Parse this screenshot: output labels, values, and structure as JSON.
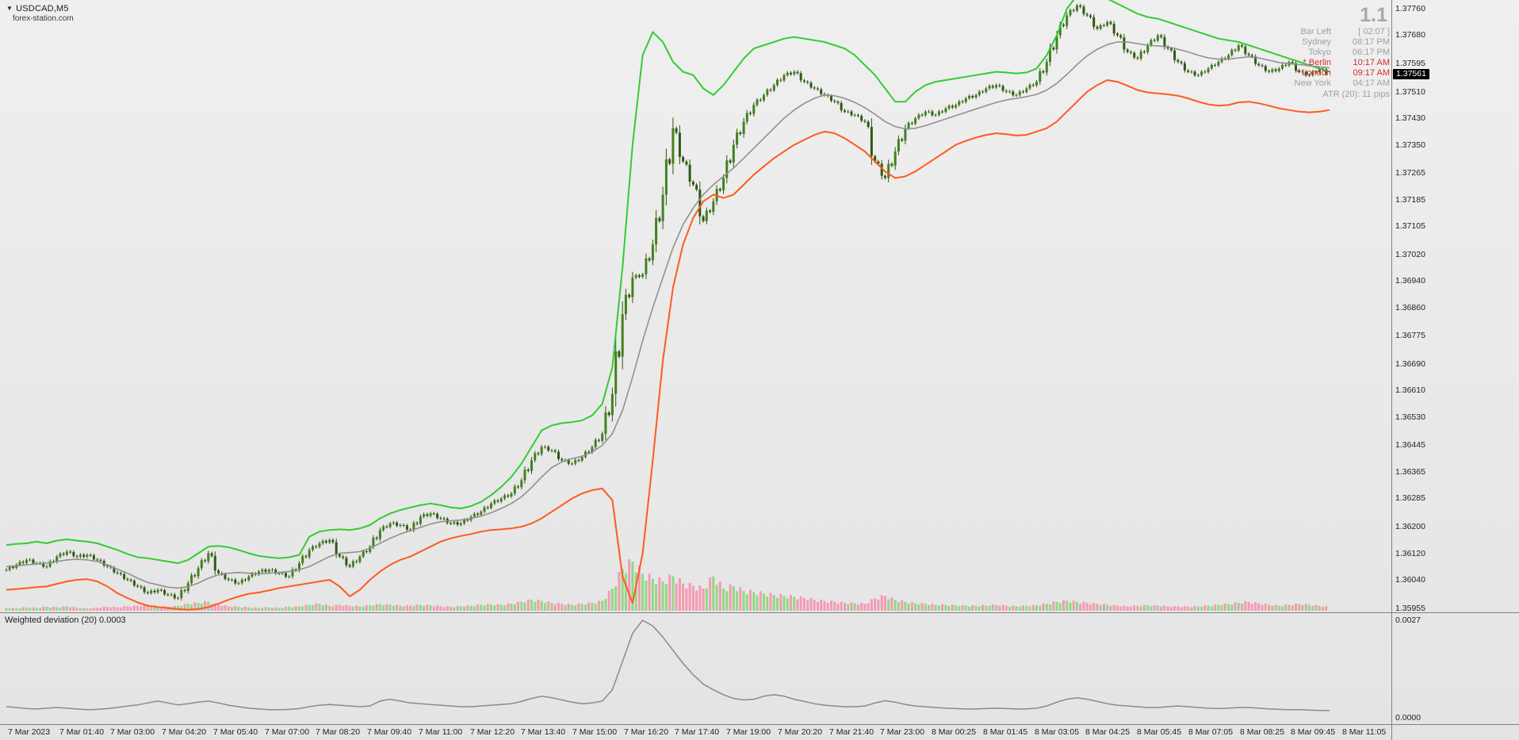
{
  "header": {
    "symbol": "USDCAD,M5",
    "watermark": "forex-station.com",
    "dropdown_icon": "▼"
  },
  "info_panel": {
    "big_number": "1.1",
    "rows": [
      {
        "label": "Bar Left",
        "value": "[ 02:07 ]",
        "highlight": false
      },
      {
        "label": "Sydney",
        "value": "08:17 PM",
        "highlight": false
      },
      {
        "label": "Tokyo",
        "value": "06:17 PM",
        "highlight": false
      },
      {
        "label": "* Berlin",
        "value": "10:17 AM",
        "highlight": true
      },
      {
        "label": "* London",
        "value": "09:17 AM",
        "highlight": true
      },
      {
        "label": "New York",
        "value": "04:17 AM",
        "highlight": false
      }
    ],
    "atr_line": "ATR (20): 11 pips"
  },
  "colors": {
    "candle_up": "#44801f",
    "candle_down": "#2d5a14",
    "candle_wick": "#2f5511",
    "volume_up": "#93d883",
    "volume_down": "#f49ab4",
    "separator": "#808080",
    "badge_bg": "#000000",
    "badge_text": "#ffffff",
    "session_red": "#d42a2a",
    "panel_gray": "#9f9f9f"
  },
  "chart_data": [
    {
      "type": "candlestick",
      "title": "USDCAD,M5",
      "ylabel": "",
      "xlabel": "",
      "ylim": [
        1.35942,
        1.37786
      ],
      "current_price": 1.37561,
      "y_ticks": [
        1.3776,
        1.3768,
        1.37595,
        1.3751,
        1.3743,
        1.3735,
        1.37265,
        1.37185,
        1.37105,
        1.3702,
        1.3694,
        1.3686,
        1.36775,
        1.3669,
        1.3661,
        1.3653,
        1.36445,
        1.36365,
        1.36285,
        1.362,
        1.3612,
        1.3604,
        1.35955
      ],
      "x_labels": [
        "7 Mar 2023",
        "7 Mar 01:40",
        "7 Mar 03:00",
        "7 Mar 04:20",
        "7 Mar 05:40",
        "7 Mar 07:00",
        "7 Mar 08:20",
        "7 Mar 09:40",
        "7 Mar 11:00",
        "7 Mar 12:20",
        "7 Mar 13:40",
        "7 Mar 15:00",
        "7 Mar 16:20",
        "7 Mar 17:40",
        "7 Mar 19:00",
        "7 Mar 20:20",
        "7 Mar 21:40",
        "7 Mar 23:00",
        "8 Mar 00:25",
        "8 Mar 01:45",
        "8 Mar 03:05",
        "8 Mar 04:25",
        "8 Mar 05:45",
        "8 Mar 07:05",
        "8 Mar 08:25",
        "8 Mar 09:45",
        "8 Mar 11:05"
      ],
      "close": [
        1.3607,
        1.36085,
        1.361,
        1.3609,
        1.3608,
        1.3611,
        1.36125,
        1.3611,
        1.36115,
        1.361,
        1.3608,
        1.3606,
        1.3604,
        1.3602,
        1.36,
        1.3601,
        1.35995,
        1.35985,
        1.3603,
        1.36075,
        1.3612,
        1.3606,
        1.3604,
        1.3603,
        1.3605,
        1.36065,
        1.3607,
        1.3606,
        1.3605,
        1.3609,
        1.3613,
        1.3615,
        1.3616,
        1.3611,
        1.3608,
        1.3611,
        1.3614,
        1.3619,
        1.3621,
        1.36205,
        1.3619,
        1.3623,
        1.3624,
        1.36225,
        1.3621,
        1.3621,
        1.3623,
        1.36245,
        1.3627,
        1.36285,
        1.363,
        1.3634,
        1.364,
        1.3644,
        1.3643,
        1.364,
        1.3639,
        1.3641,
        1.3644,
        1.3648,
        1.366,
        1.3684,
        1.3695,
        1.3696,
        1.3705,
        1.372,
        1.374,
        1.373,
        1.3723,
        1.3712,
        1.3718,
        1.3725,
        1.3735,
        1.3742,
        1.3747,
        1.375,
        1.3753,
        1.3756,
        1.3757,
        1.3754,
        1.3752,
        1.375,
        1.3748,
        1.3745,
        1.3744,
        1.3742,
        1.373,
        1.3725,
        1.3733,
        1.374,
        1.3743,
        1.3745,
        1.3744,
        1.3746,
        1.3747,
        1.3749,
        1.375,
        1.3752,
        1.3753,
        1.3751,
        1.375,
        1.3752,
        1.3754,
        1.376,
        1.3768,
        1.3774,
        1.3777,
        1.3774,
        1.377,
        1.3772,
        1.3768,
        1.3763,
        1.3761,
        1.3765,
        1.3768,
        1.3764,
        1.376,
        1.3757,
        1.3756,
        1.3758,
        1.376,
        1.3762,
        1.3765,
        1.3762,
        1.3759,
        1.3757,
        1.3758,
        1.376,
        1.3757,
        1.3756,
        1.3758,
        1.37561
      ],
      "volume": [
        6,
        5,
        7,
        6,
        8,
        7,
        9,
        6,
        5,
        6,
        8,
        7,
        9,
        10,
        12,
        9,
        8,
        10,
        14,
        16,
        18,
        12,
        9,
        8,
        7,
        6,
        7,
        6,
        8,
        9,
        12,
        14,
        10,
        12,
        10,
        9,
        11,
        13,
        12,
        10,
        10,
        12,
        11,
        9,
        8,
        9,
        10,
        12,
        13,
        12,
        14,
        18,
        22,
        20,
        16,
        14,
        12,
        14,
        16,
        20,
        45,
        85,
        100,
        75,
        65,
        60,
        70,
        55,
        50,
        45,
        70,
        45,
        50,
        40,
        38,
        35,
        32,
        30,
        28,
        26,
        22,
        20,
        18,
        16,
        15,
        14,
        25,
        30,
        22,
        18,
        15,
        14,
        12,
        12,
        11,
        10,
        10,
        11,
        12,
        10,
        9,
        10,
        11,
        14,
        18,
        20,
        18,
        16,
        14,
        12,
        10,
        9,
        10,
        11,
        10,
        9,
        9,
        8,
        9,
        10,
        12,
        14,
        16,
        18,
        15,
        12,
        10,
        12,
        14,
        12,
        10,
        8
      ],
      "series": [
        {
          "name": "upper-band",
          "color": "#33cc33",
          "width": 2,
          "values": [
            1.36145,
            1.36148,
            1.3615,
            1.36155,
            1.3615,
            1.36158,
            1.36162,
            1.36158,
            1.36155,
            1.3615,
            1.3614,
            1.3613,
            1.36118,
            1.36108,
            1.36105,
            1.361,
            1.36095,
            1.3609,
            1.361,
            1.3612,
            1.3614,
            1.36142,
            1.36138,
            1.3613,
            1.3612,
            1.36112,
            1.36108,
            1.36105,
            1.36108,
            1.36115,
            1.3617,
            1.36185,
            1.3619,
            1.36192,
            1.3619,
            1.36195,
            1.36205,
            1.36225,
            1.3624,
            1.3625,
            1.36258,
            1.36265,
            1.3627,
            1.36265,
            1.36258,
            1.36255,
            1.36262,
            1.36275,
            1.36295,
            1.3632,
            1.3635,
            1.3639,
            1.3644,
            1.3649,
            1.36505,
            1.36512,
            1.36515,
            1.3652,
            1.36535,
            1.3657,
            1.3668,
            1.3698,
            1.3735,
            1.3762,
            1.3769,
            1.3766,
            1.376,
            1.3757,
            1.3756,
            1.3752,
            1.375,
            1.3753,
            1.3757,
            1.3761,
            1.3764,
            1.3765,
            1.3766,
            1.3767,
            1.37675,
            1.3767,
            1.37665,
            1.3766,
            1.3765,
            1.3764,
            1.3762,
            1.3759,
            1.3756,
            1.3752,
            1.3748,
            1.3748,
            1.3751,
            1.3753,
            1.3754,
            1.37545,
            1.3755,
            1.37555,
            1.3756,
            1.37565,
            1.3757,
            1.37568,
            1.37565,
            1.37568,
            1.3758,
            1.3762,
            1.3768,
            1.3776,
            1.378,
            1.3781,
            1.378,
            1.3779,
            1.37775,
            1.3776,
            1.37745,
            1.37735,
            1.3773,
            1.3772,
            1.3771,
            1.377,
            1.3769,
            1.3768,
            1.3767,
            1.37665,
            1.3766,
            1.3765,
            1.3764,
            1.3763,
            1.3762,
            1.3761,
            1.376,
            1.3759,
            1.3758,
            1.3757
          ]
        },
        {
          "name": "median-band",
          "color": "#909090",
          "width": 1.6,
          "values": [
            1.3608,
            1.36082,
            1.36085,
            1.36088,
            1.3609,
            1.36095,
            1.361,
            1.36102,
            1.361,
            1.36095,
            1.36085,
            1.36072,
            1.3606,
            1.36045,
            1.36032,
            1.36025,
            1.36018,
            1.36015,
            1.3602,
            1.3603,
            1.36045,
            1.36055,
            1.3606,
            1.36062,
            1.3606,
            1.36058,
            1.3606,
            1.36062,
            1.36065,
            1.3607,
            1.3608,
            1.36095,
            1.3611,
            1.3612,
            1.36122,
            1.36125,
            1.36135,
            1.3615,
            1.36165,
            1.36178,
            1.36188,
            1.36198,
            1.36208,
            1.36215,
            1.36218,
            1.3622,
            1.36225,
            1.36232,
            1.36242,
            1.36255,
            1.3627,
            1.3629,
            1.36318,
            1.3635,
            1.36378,
            1.36395,
            1.36405,
            1.36412,
            1.36425,
            1.36445,
            1.3648,
            1.3655,
            1.3665,
            1.3676,
            1.3686,
            1.3695,
            1.3704,
            1.3711,
            1.3716,
            1.372,
            1.3723,
            1.37255,
            1.3728,
            1.3731,
            1.3734,
            1.3737,
            1.374,
            1.3743,
            1.37455,
            1.37475,
            1.3749,
            1.375,
            1.37498,
            1.3749,
            1.37478,
            1.37462,
            1.37442,
            1.3742,
            1.37405,
            1.37398,
            1.374,
            1.37408,
            1.37418,
            1.37428,
            1.37438,
            1.37448,
            1.37458,
            1.37468,
            1.37478,
            1.37485,
            1.3749,
            1.37495,
            1.37502,
            1.37515,
            1.37535,
            1.37562,
            1.37592,
            1.37618,
            1.37638,
            1.37652,
            1.3766,
            1.3766,
            1.37655,
            1.3765,
            1.37648,
            1.37645,
            1.37638,
            1.3763,
            1.3762,
            1.37612,
            1.37608,
            1.37608,
            1.37612,
            1.37615,
            1.37612,
            1.37605,
            1.37598,
            1.37595,
            1.37592,
            1.37588,
            1.37585,
            1.37582
          ]
        },
        {
          "name": "lower-band",
          "color": "#ff5a1f",
          "width": 2,
          "values": [
            1.3601,
            1.36012,
            1.36015,
            1.36018,
            1.3602,
            1.36028,
            1.36035,
            1.3604,
            1.36042,
            1.36035,
            1.3602,
            1.36,
            1.35985,
            1.35972,
            1.35962,
            1.35958,
            1.35955,
            1.35952,
            1.3595,
            1.35952,
            1.35958,
            1.35968,
            1.3598,
            1.3599,
            1.35998,
            1.36002,
            1.36008,
            1.36015,
            1.3602,
            1.36025,
            1.3603,
            1.36035,
            1.3604,
            1.3602,
            1.3599,
            1.3601,
            1.3604,
            1.36065,
            1.36085,
            1.361,
            1.3611,
            1.36125,
            1.3614,
            1.36155,
            1.36165,
            1.36172,
            1.36178,
            1.36185,
            1.3619,
            1.36192,
            1.36195,
            1.362,
            1.3621,
            1.36225,
            1.36245,
            1.36265,
            1.36285,
            1.363,
            1.3631,
            1.36315,
            1.3628,
            1.3605,
            1.3597,
            1.3612,
            1.364,
            1.367,
            1.3692,
            1.3705,
            1.3713,
            1.3718,
            1.372,
            1.3719,
            1.372,
            1.3723,
            1.3726,
            1.37285,
            1.3731,
            1.3733,
            1.3735,
            1.37365,
            1.3738,
            1.3739,
            1.37385,
            1.3737,
            1.3735,
            1.3733,
            1.373,
            1.3727,
            1.3725,
            1.37255,
            1.3727,
            1.3729,
            1.3731,
            1.3733,
            1.3735,
            1.37362,
            1.37372,
            1.3738,
            1.37385,
            1.37382,
            1.37378,
            1.3738,
            1.3739,
            1.374,
            1.3742,
            1.3745,
            1.3748,
            1.3751,
            1.3753,
            1.37545,
            1.3754,
            1.37528,
            1.37515,
            1.37508,
            1.37505,
            1.37502,
            1.37498,
            1.3749,
            1.3748,
            1.37472,
            1.37468,
            1.3747,
            1.37478,
            1.3748,
            1.37475,
            1.37468,
            1.3746,
            1.37455,
            1.3745,
            1.37448,
            1.3745,
            1.37455
          ]
        }
      ]
    },
    {
      "type": "line",
      "title": "Weighted deviation (20) 0.0003",
      "color": "#8a8a8a",
      "y_ticks": [
        0.0027,
        0.0
      ],
      "ylim": [
        0,
        0.0029
      ],
      "values": [
        0.0004,
        0.00038,
        0.00035,
        0.00034,
        0.00036,
        0.00038,
        0.00036,
        0.00034,
        0.00032,
        0.00033,
        0.00035,
        0.00038,
        0.00042,
        0.00045,
        0.0005,
        0.00055,
        0.0005,
        0.00045,
        0.00048,
        0.00052,
        0.00055,
        0.0005,
        0.00044,
        0.0004,
        0.00036,
        0.00034,
        0.00032,
        0.00032,
        0.00033,
        0.00035,
        0.0004,
        0.00044,
        0.00046,
        0.00044,
        0.00042,
        0.0004,
        0.00042,
        0.00055,
        0.0006,
        0.00055,
        0.0005,
        0.00048,
        0.00046,
        0.00044,
        0.00042,
        0.0004,
        0.0004,
        0.00042,
        0.00044,
        0.00046,
        0.00048,
        0.00054,
        0.00062,
        0.00068,
        0.00064,
        0.00058,
        0.00052,
        0.00048,
        0.0005,
        0.00055,
        0.00085,
        0.0016,
        0.00235,
        0.0027,
        0.00255,
        0.00225,
        0.0019,
        0.00155,
        0.00125,
        0.001,
        0.00085,
        0.00072,
        0.00062,
        0.00058,
        0.0006,
        0.00068,
        0.00072,
        0.00068,
        0.0006,
        0.00054,
        0.00048,
        0.00044,
        0.00042,
        0.0004,
        0.0004,
        0.00042,
        0.0005,
        0.00056,
        0.00052,
        0.00046,
        0.00042,
        0.0004,
        0.00038,
        0.00036,
        0.00035,
        0.00034,
        0.00034,
        0.00035,
        0.00036,
        0.00035,
        0.00034,
        0.00034,
        0.00036,
        0.00042,
        0.00052,
        0.0006,
        0.00064,
        0.0006,
        0.00054,
        0.00048,
        0.00044,
        0.00042,
        0.0004,
        0.00038,
        0.00038,
        0.0004,
        0.00042,
        0.0004,
        0.00038,
        0.00036,
        0.00035,
        0.00036,
        0.00038,
        0.00038,
        0.00036,
        0.00034,
        0.00033,
        0.00032,
        0.00032,
        0.00031,
        0.0003,
        0.0003
      ]
    }
  ]
}
